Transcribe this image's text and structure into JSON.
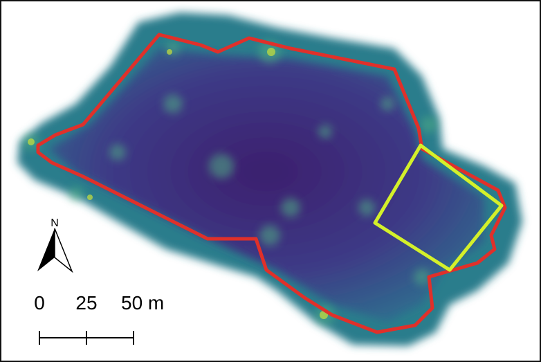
{
  "north_arrow": {
    "label": "N"
  },
  "scale_bar": {
    "labels": [
      "0",
      "25",
      "50 m"
    ]
  }
}
